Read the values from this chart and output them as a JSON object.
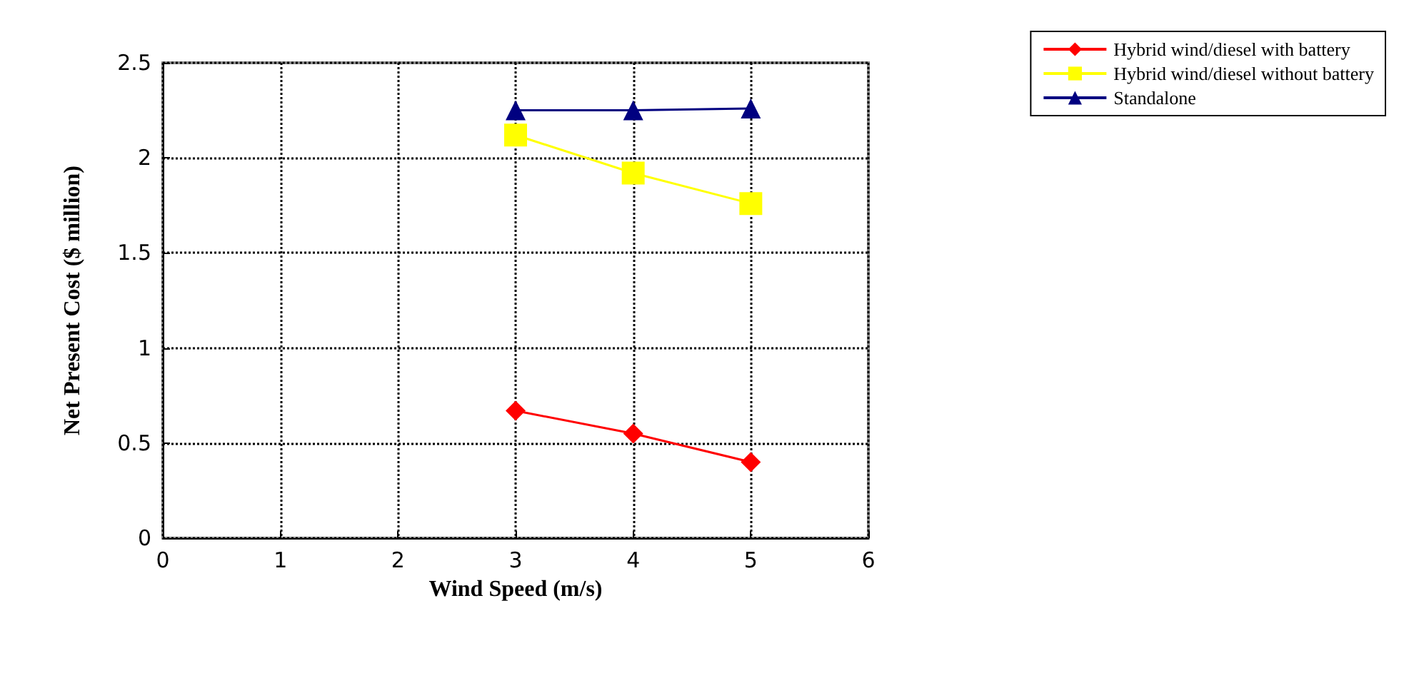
{
  "chart_data": {
    "type": "line",
    "xlabel": "Wind Speed (m/s)",
    "ylabel": "Net Present Cost ($ million)",
    "xlim": [
      0,
      6
    ],
    "xticks": [
      0,
      1,
      2,
      3,
      4,
      5,
      6
    ],
    "ylim": [
      0,
      2.5
    ],
    "yticks": [
      0,
      0.5,
      1,
      1.5,
      2,
      2.5
    ],
    "grid": true,
    "legend": "top right",
    "series": [
      {
        "name": "Hybrid wind/diesel with battery",
        "color": "#ff0000",
        "marker": "diamond",
        "x": [
          3,
          4,
          5
        ],
        "values": [
          0.67,
          0.55,
          0.4
        ]
      },
      {
        "name": "Hybrid wind/diesel without battery",
        "color": "#ffff00",
        "marker": "square",
        "x": [
          3,
          4,
          5
        ],
        "values": [
          2.12,
          1.92,
          1.76
        ]
      },
      {
        "name": "Standalone",
        "color": "#000080",
        "marker": "triangle",
        "x": [
          3,
          4,
          5
        ],
        "values": [
          2.25,
          2.25,
          2.26
        ]
      }
    ]
  }
}
